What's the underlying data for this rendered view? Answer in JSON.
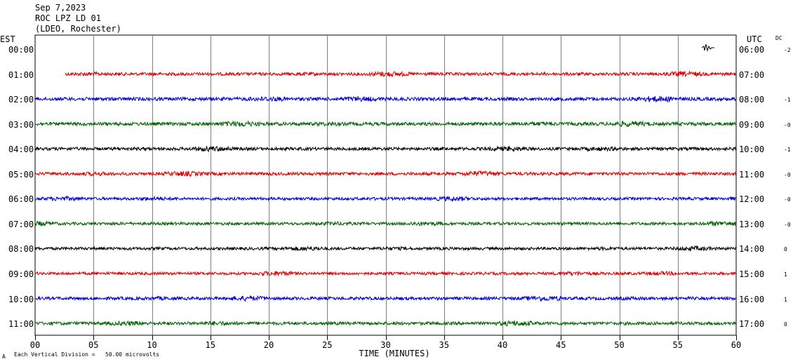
{
  "header": {
    "date": "Sep 7,2023",
    "station": "ROC LPZ LD 01",
    "network": "(LDEO, Rochester)"
  },
  "left_axis_title": "EST",
  "right_axis_title": "UTC",
  "dc_title": "DC",
  "footer": {
    "scale_note": "Each Vertical Division =   50.00 microvolts",
    "corner_mark": "A"
  },
  "chart_data": {
    "type": "line",
    "title": "",
    "xlabel": "TIME (MINUTES)",
    "xlim": [
      0,
      60
    ],
    "x_ticks": [
      "00",
      "05",
      "10",
      "15",
      "20",
      "25",
      "30",
      "35",
      "40",
      "45",
      "50",
      "55",
      "60"
    ],
    "grid": "vertical every 5 minutes",
    "amplitude_unit": "microvolts",
    "rows": [
      {
        "est": "00:00",
        "utc": "06:00",
        "dc": "-2",
        "color": "#cc0000",
        "start_minute": 60,
        "noise": 0
      },
      {
        "est": "01:00",
        "utc": "07:00",
        "dc": "",
        "color": "#dd0000",
        "start_minute": 2.6,
        "noise": 2.2
      },
      {
        "est": "02:00",
        "utc": "08:00",
        "dc": "-1",
        "color": "#0000cc",
        "start_minute": 0,
        "noise": 2.4
      },
      {
        "est": "03:00",
        "utc": "09:00",
        "dc": "-0",
        "color": "#006400",
        "start_minute": 0,
        "noise": 2.4
      },
      {
        "est": "04:00",
        "utc": "10:00",
        "dc": "-1",
        "color": "#000000",
        "start_minute": 0,
        "noise": 2.2
      },
      {
        "est": "05:00",
        "utc": "11:00",
        "dc": "-0",
        "color": "#dd0000",
        "start_minute": 0,
        "noise": 2.2
      },
      {
        "est": "06:00",
        "utc": "12:00",
        "dc": "-0",
        "color": "#0000cc",
        "start_minute": 0,
        "noise": 2.0
      },
      {
        "est": "07:00",
        "utc": "13:00",
        "dc": "-0",
        "color": "#006400",
        "start_minute": 0,
        "noise": 2.0
      },
      {
        "est": "08:00",
        "utc": "14:00",
        "dc": "0",
        "color": "#000000",
        "start_minute": 0,
        "noise": 2.0
      },
      {
        "est": "09:00",
        "utc": "15:00",
        "dc": "1",
        "color": "#dd0000",
        "start_minute": 0,
        "noise": 2.0
      },
      {
        "est": "10:00",
        "utc": "16:00",
        "dc": "1",
        "color": "#0000cc",
        "start_minute": 0,
        "noise": 2.2
      },
      {
        "est": "11:00",
        "utc": "17:00",
        "dc": "0",
        "color": "#006400",
        "start_minute": 0,
        "noise": 2.2
      }
    ]
  }
}
